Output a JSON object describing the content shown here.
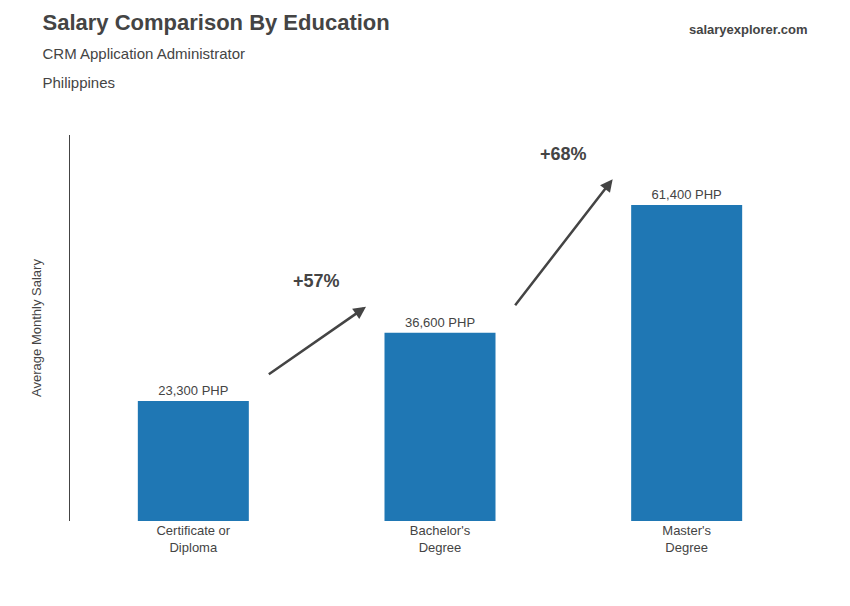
{
  "chart_data": {
    "type": "bar",
    "title": "Salary Comparison By Education",
    "subtitle": [
      "CRM Application Administrator",
      "Philippines"
    ],
    "brand": "salaryexplorer.com",
    "ylabel": "Average Monthly Salary",
    "categories": [
      "Certificate or\nDiploma",
      "Bachelor's\nDegree",
      "Master's\nDegree"
    ],
    "values": [
      23300,
      36600,
      61400
    ],
    "value_labels": [
      "23,300 PHP",
      "36,600 PHP",
      "61,400 PHP"
    ],
    "data_labels": true,
    "annotations": [
      "+57%",
      "+68%"
    ],
    "ylim": [
      0,
      75000
    ],
    "grid": false,
    "tick_labels": "x"
  }
}
